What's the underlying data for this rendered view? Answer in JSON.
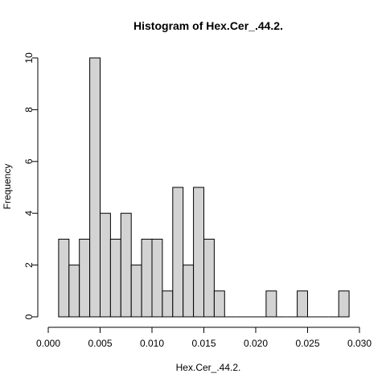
{
  "chart_data": {
    "type": "bar",
    "title": "Histogram of Hex.Cer_.44.2.",
    "xlabel": "Hex.Cer_.44.2.",
    "ylabel": "Frequency",
    "xlim": [
      0,
      0.03
    ],
    "ylim": [
      0,
      10
    ],
    "x_ticks": [
      "0.000",
      "0.005",
      "0.010",
      "0.015",
      "0.020",
      "0.025",
      "0.030"
    ],
    "x_tick_values": [
      0,
      0.005,
      0.01,
      0.015,
      0.02,
      0.025,
      0.03
    ],
    "y_ticks": [
      "0",
      "2",
      "4",
      "6",
      "8",
      "10"
    ],
    "y_tick_values": [
      0,
      2,
      4,
      6,
      8,
      10
    ],
    "bin_width": 0.001,
    "bins": [
      {
        "start": 0.001,
        "end": 0.002,
        "value": 3
      },
      {
        "start": 0.002,
        "end": 0.003,
        "value": 2
      },
      {
        "start": 0.003,
        "end": 0.004,
        "value": 3
      },
      {
        "start": 0.004,
        "end": 0.005,
        "value": 10
      },
      {
        "start": 0.005,
        "end": 0.006,
        "value": 4
      },
      {
        "start": 0.006,
        "end": 0.007,
        "value": 3
      },
      {
        "start": 0.007,
        "end": 0.008,
        "value": 4
      },
      {
        "start": 0.008,
        "end": 0.009,
        "value": 2
      },
      {
        "start": 0.009,
        "end": 0.01,
        "value": 3
      },
      {
        "start": 0.01,
        "end": 0.011,
        "value": 3
      },
      {
        "start": 0.011,
        "end": 0.012,
        "value": 1
      },
      {
        "start": 0.012,
        "end": 0.013,
        "value": 5
      },
      {
        "start": 0.013,
        "end": 0.014,
        "value": 2
      },
      {
        "start": 0.014,
        "end": 0.015,
        "value": 5
      },
      {
        "start": 0.015,
        "end": 0.016,
        "value": 3
      },
      {
        "start": 0.016,
        "end": 0.017,
        "value": 1
      },
      {
        "start": 0.017,
        "end": 0.018,
        "value": 0
      },
      {
        "start": 0.018,
        "end": 0.019,
        "value": 0
      },
      {
        "start": 0.019,
        "end": 0.02,
        "value": 0
      },
      {
        "start": 0.02,
        "end": 0.021,
        "value": 0
      },
      {
        "start": 0.021,
        "end": 0.022,
        "value": 1
      },
      {
        "start": 0.022,
        "end": 0.023,
        "value": 0
      },
      {
        "start": 0.023,
        "end": 0.024,
        "value": 0
      },
      {
        "start": 0.024,
        "end": 0.025,
        "value": 1
      },
      {
        "start": 0.025,
        "end": 0.026,
        "value": 0
      },
      {
        "start": 0.026,
        "end": 0.027,
        "value": 0
      },
      {
        "start": 0.027,
        "end": 0.028,
        "value": 0
      },
      {
        "start": 0.028,
        "end": 0.029,
        "value": 1
      }
    ],
    "grid": false,
    "bar_fill": "#d3d3d3",
    "bar_stroke": "#000000"
  }
}
